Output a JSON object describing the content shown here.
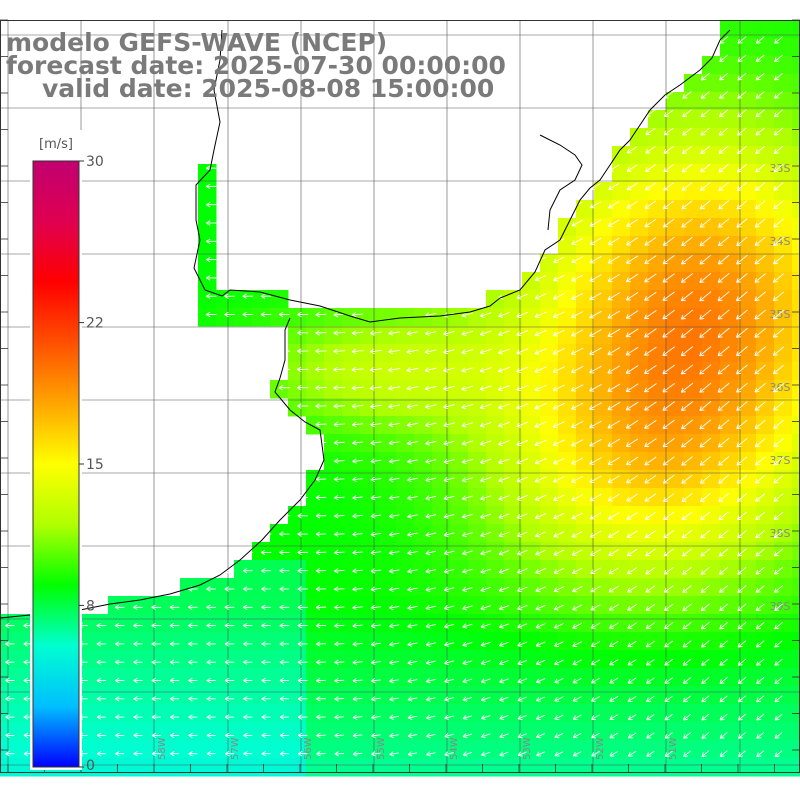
{
  "title": {
    "line1": "modelo GEFS-WAVE (NCEP)",
    "line2": "forecast date: 2025-07-30 00:00:00",
    "line3": "valid date: 2025-08-08 15:00:00"
  },
  "colorbar": {
    "unit": "[m/s]",
    "ticks": [
      "30",
      "22",
      "15",
      "8",
      "0"
    ],
    "tick_values": [
      30,
      22,
      15,
      8,
      0
    ],
    "range": [
      0,
      30
    ],
    "colors": [
      "#0000ff",
      "#00bfff",
      "#00ffd0",
      "#00ff00",
      "#b0ff00",
      "#ffff00",
      "#ffa500",
      "#ff5000",
      "#ff0000",
      "#e00050",
      "#c00070"
    ]
  },
  "map": {
    "lat_labels": [
      "33S",
      "34S",
      "35S",
      "36S",
      "37S",
      "38S",
      "39S"
    ],
    "lon_labels": [
      "58W",
      "57W",
      "56W",
      "55W",
      "54W",
      "53W",
      "52W",
      "51W"
    ],
    "wind_direction": "from northeast toward southwest",
    "speed_units": "m/s"
  }
}
